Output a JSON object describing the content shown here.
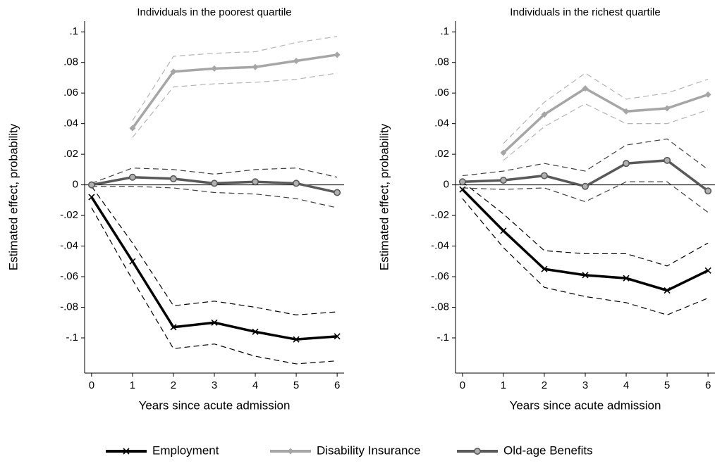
{
  "chart_data": [
    {
      "type": "line",
      "title": "Individuals in the poorest quartile",
      "xlabel": "Years since acute admission",
      "ylabel": "Estimated effect, probability",
      "x": [
        0,
        1,
        2,
        3,
        4,
        5,
        6
      ],
      "xlim": [
        -0.17,
        6.17
      ],
      "xticks": [
        0,
        1,
        2,
        3,
        4,
        5,
        6
      ],
      "ylim": [
        -0.123,
        0.107
      ],
      "yticks": [
        {
          "value": 0.1,
          "label": ".1"
        },
        {
          "value": 0.08,
          "label": ".08"
        },
        {
          "value": 0.06,
          "label": ".06"
        },
        {
          "value": 0.04,
          "label": ".04"
        },
        {
          "value": 0.02,
          "label": ".02"
        },
        0,
        {
          "value": -0.02,
          "label": "-.02"
        },
        {
          "value": -0.04,
          "label": "-.04"
        },
        {
          "value": -0.06,
          "label": "-.06"
        },
        {
          "value": -0.08,
          "label": "-.08"
        },
        {
          "value": -0.1,
          "label": "-.1"
        }
      ],
      "hline": 0,
      "series": [
        {
          "name": "Employment",
          "color": "#000000",
          "ci_color": "#000000",
          "marker": "x",
          "values": [
            -0.008,
            -0.05,
            -0.093,
            -0.09,
            -0.096,
            -0.101,
            -0.099
          ],
          "lower": [
            -0.015,
            -0.062,
            -0.107,
            -0.104,
            -0.112,
            -0.117,
            -0.115
          ],
          "upper": [
            -0.001,
            -0.038,
            -0.079,
            -0.076,
            -0.08,
            -0.085,
            -0.083
          ]
        },
        {
          "name": "Disability Insurance",
          "color": "#a6a6a6",
          "ci_color": "#b4b4b4",
          "marker": "diamond",
          "values": [
            null,
            0.037,
            0.074,
            0.076,
            0.077,
            0.081,
            0.085
          ],
          "lower": [
            null,
            0.031,
            0.064,
            0.066,
            0.067,
            0.069,
            0.073
          ],
          "upper": [
            null,
            0.042,
            0.084,
            0.086,
            0.087,
            0.093,
            0.097
          ]
        },
        {
          "name": "Old-age Benefits",
          "color": "#595959",
          "ci_color": "#404040",
          "marker": "circle",
          "values": [
            0,
            0.005,
            0.004,
            0.001,
            0.002,
            0.001,
            -0.005
          ],
          "lower": [
            -0.001,
            -0.001,
            -0.002,
            -0.005,
            -0.006,
            -0.009,
            -0.015
          ],
          "upper": [
            0.001,
            0.011,
            0.01,
            0.007,
            0.01,
            0.011,
            0.005
          ]
        }
      ]
    },
    {
      "type": "line",
      "title": "Individuals in the richest quartile",
      "xlabel": "Years since acute admission",
      "ylabel": "Estimated effect, probability",
      "x": [
        0,
        1,
        2,
        3,
        4,
        5,
        6
      ],
      "xlim": [
        -0.17,
        6.17
      ],
      "xticks": [
        0,
        1,
        2,
        3,
        4,
        5,
        6
      ],
      "ylim": [
        -0.123,
        0.107
      ],
      "yticks": [
        {
          "value": 0.1,
          "label": ".1"
        },
        {
          "value": 0.08,
          "label": ".08"
        },
        {
          "value": 0.06,
          "label": ".06"
        },
        {
          "value": 0.04,
          "label": ".04"
        },
        {
          "value": 0.02,
          "label": ".02"
        },
        0,
        {
          "value": -0.02,
          "label": "-.02"
        },
        {
          "value": -0.04,
          "label": "-.04"
        },
        {
          "value": -0.06,
          "label": "-.06"
        },
        {
          "value": -0.08,
          "label": "-.08"
        },
        {
          "value": -0.1,
          "label": "-.1"
        }
      ],
      "hline": 0,
      "series": [
        {
          "name": "Employment",
          "color": "#000000",
          "ci_color": "#000000",
          "marker": "x",
          "values": [
            -0.003,
            -0.03,
            -0.055,
            -0.059,
            -0.061,
            -0.069,
            -0.056
          ],
          "lower": [
            -0.009,
            -0.041,
            -0.067,
            -0.073,
            -0.077,
            -0.085,
            -0.074
          ],
          "upper": [
            0.002,
            -0.019,
            -0.043,
            -0.045,
            -0.045,
            -0.053,
            -0.038
          ]
        },
        {
          "name": "Disability Insurance",
          "color": "#a6a6a6",
          "ci_color": "#b4b4b4",
          "marker": "diamond",
          "values": [
            null,
            0.021,
            0.046,
            0.063,
            0.048,
            0.05,
            0.059
          ],
          "lower": [
            null,
            0.016,
            0.038,
            0.053,
            0.04,
            0.04,
            0.049
          ],
          "upper": [
            null,
            0.027,
            0.054,
            0.073,
            0.056,
            0.06,
            0.069
          ]
        },
        {
          "name": "Old-age Benefits",
          "color": "#595959",
          "ci_color": "#404040",
          "marker": "circle",
          "values": [
            0.002,
            0.003,
            0.006,
            -0.001,
            0.014,
            0.016,
            -0.004
          ],
          "lower": [
            -0.002,
            -0.003,
            -0.002,
            -0.011,
            0.002,
            0.002,
            -0.018
          ],
          "upper": [
            0.006,
            0.009,
            0.014,
            0.009,
            0.026,
            0.03,
            0.01
          ]
        }
      ]
    }
  ]
}
